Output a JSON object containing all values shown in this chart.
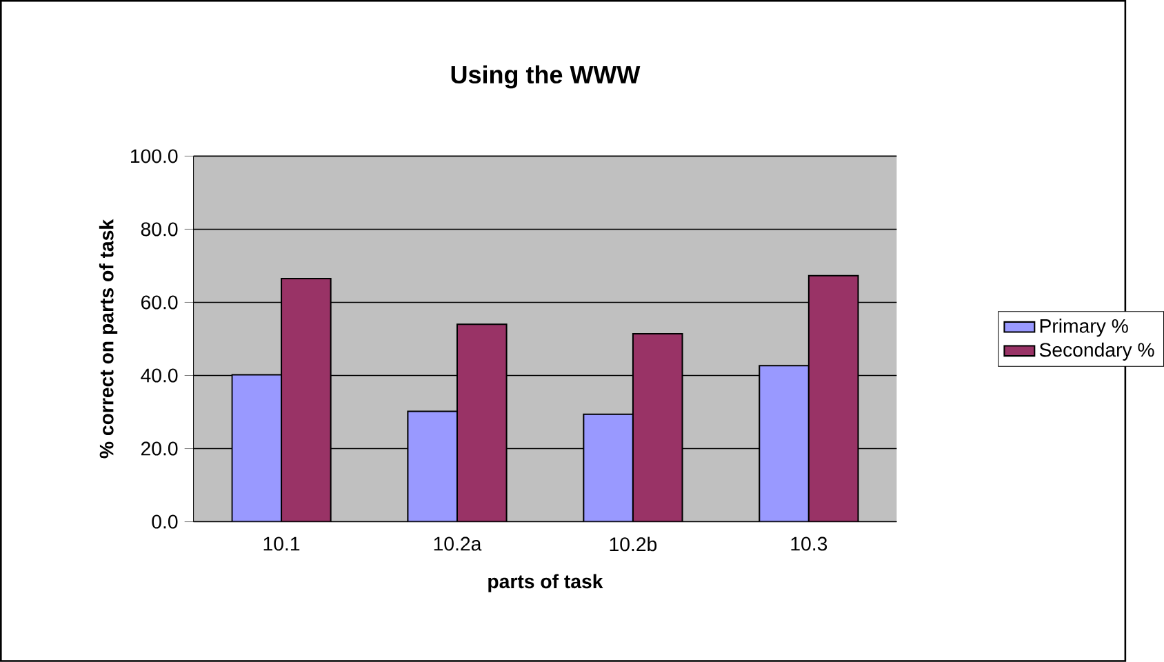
{
  "chart_data": {
    "type": "bar",
    "title": "Using the WWW",
    "xlabel": "parts of task",
    "ylabel": "% correct on parts of task",
    "categories": [
      "10.1",
      "10.2a",
      "10.2b",
      "10.3"
    ],
    "series": [
      {
        "name": "Primary %",
        "color": "#9999ff",
        "values": [
          40.2,
          30.2,
          29.4,
          42.7
        ]
      },
      {
        "name": "Secondary %",
        "color": "#993366",
        "values": [
          66.5,
          54.0,
          51.4,
          67.3
        ]
      }
    ],
    "ylim": [
      0,
      100
    ],
    "yticks": [
      {
        "value": 0,
        "label": "0.0"
      },
      {
        "value": 20,
        "label": "20.0"
      },
      {
        "value": 40,
        "label": "40.0"
      },
      {
        "value": 60,
        "label": "60.0"
      },
      {
        "value": 80,
        "label": "80.0"
      },
      {
        "value": 100,
        "label": "100.0"
      }
    ],
    "grid": "y",
    "legend": "right"
  }
}
